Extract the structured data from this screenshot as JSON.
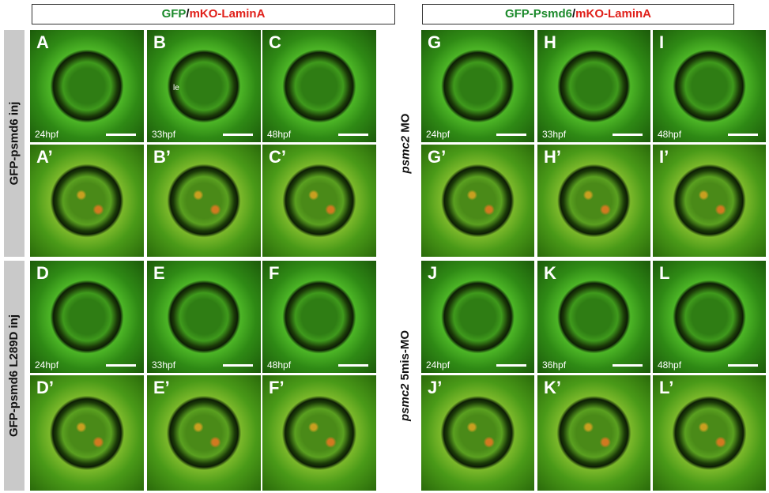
{
  "left": {
    "header": [
      "GFP",
      "/",
      "mKO-LaminA"
    ],
    "groups": [
      {
        "label": [
          "GFP-psmd6 inj"
        ],
        "panels": [
          {
            "letter": "A",
            "time": "24hpf"
          },
          {
            "letter": "B",
            "time": "33hpf",
            "note": "le"
          },
          {
            "letter": "C",
            "time": "48hpf"
          },
          {
            "letter": "A’"
          },
          {
            "letter": "B’"
          },
          {
            "letter": "C’"
          }
        ]
      },
      {
        "label": [
          "GFP-psmd6 L289D inj"
        ],
        "panels": [
          {
            "letter": "D",
            "time": "24hpf"
          },
          {
            "letter": "E",
            "time": "33hpf"
          },
          {
            "letter": "F",
            "time": "48hpf"
          },
          {
            "letter": "D’"
          },
          {
            "letter": "E’"
          },
          {
            "letter": "F’"
          }
        ]
      }
    ]
  },
  "right": {
    "header": [
      "GFP-Psmd6",
      "/",
      "mKO-LaminA"
    ],
    "groups": [
      {
        "label": [
          "psmc2",
          " MO"
        ],
        "panels": [
          {
            "letter": "G",
            "time": "24hpf"
          },
          {
            "letter": "H",
            "time": "33hpf"
          },
          {
            "letter": "I",
            "time": "48hpf"
          },
          {
            "letter": "G’"
          },
          {
            "letter": "H’"
          },
          {
            "letter": "I’"
          }
        ]
      },
      {
        "label": [
          "psmc2",
          " 5mis-MO"
        ],
        "panels": [
          {
            "letter": "J",
            "time": "24hpf"
          },
          {
            "letter": "K",
            "time": "36hpf"
          },
          {
            "letter": "L",
            "time": "48hpf"
          },
          {
            "letter": "J’"
          },
          {
            "letter": "K’"
          },
          {
            "letter": "L’"
          }
        ]
      }
    ]
  }
}
